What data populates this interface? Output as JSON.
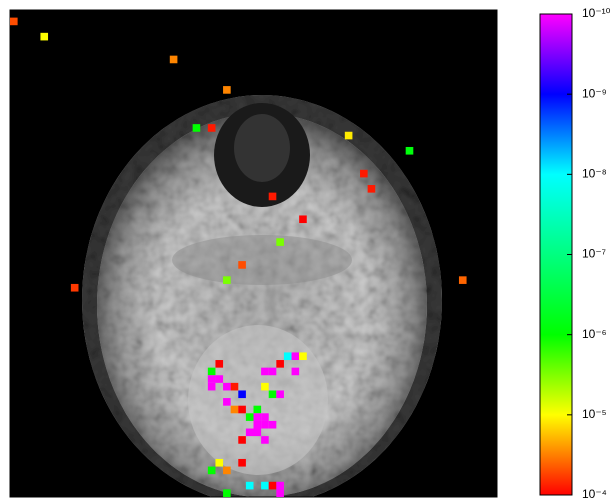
{
  "chart_data": {
    "type": "image-overlay",
    "grid_size": 64,
    "colorbar": {
      "scale": "log",
      "lim": [
        1e-10,
        0.0001
      ],
      "ticks": [
        {
          "value": 1e-10,
          "label": "10⁻¹⁰"
        },
        {
          "value": 1e-09,
          "label": "10⁻⁹"
        },
        {
          "value": 1e-08,
          "label": "10⁻⁸"
        },
        {
          "value": 1e-07,
          "label": "10⁻⁷"
        },
        {
          "value": 1e-06,
          "label": "10⁻⁶"
        },
        {
          "value": 1e-05,
          "label": "10⁻⁵"
        },
        {
          "value": 0.0001,
          "label": "10⁻⁴"
        }
      ],
      "colormap": [
        "#ff0000",
        "#ffff00",
        "#00ff00",
        "#00ff80",
        "#00ffff",
        "#0000ff",
        "#ff00ff"
      ]
    },
    "voxels": [
      {
        "x": 0,
        "y": 1,
        "value": 5e-05
      },
      {
        "x": 4,
        "y": 3,
        "value": 1e-05
      },
      {
        "x": 21,
        "y": 6,
        "value": 3e-05
      },
      {
        "x": 28,
        "y": 10,
        "value": 3e-05
      },
      {
        "x": 24,
        "y": 15,
        "value": 1e-06
      },
      {
        "x": 26,
        "y": 15,
        "value": 8e-05
      },
      {
        "x": 44,
        "y": 16,
        "value": 1.2e-05
      },
      {
        "x": 52,
        "y": 18,
        "value": 8e-07
      },
      {
        "x": 46,
        "y": 21,
        "value": 8e-05
      },
      {
        "x": 47,
        "y": 23,
        "value": 8e-05
      },
      {
        "x": 34,
        "y": 24,
        "value": 8e-05
      },
      {
        "x": 38,
        "y": 27,
        "value": 0.0001
      },
      {
        "x": 35,
        "y": 30,
        "value": 3e-06
      },
      {
        "x": 30,
        "y": 33,
        "value": 5e-05
      },
      {
        "x": 28,
        "y": 35,
        "value": 3e-06
      },
      {
        "x": 59,
        "y": 35,
        "value": 4e-05
      },
      {
        "x": 8,
        "y": 36,
        "value": 6e-05
      },
      {
        "x": 27,
        "y": 46,
        "value": 0.0001
      },
      {
        "x": 35,
        "y": 46,
        "value": 0.0001
      },
      {
        "x": 26,
        "y": 47,
        "value": 1e-06
      },
      {
        "x": 36,
        "y": 45,
        "value": 1e-08
      },
      {
        "x": 37,
        "y": 45,
        "value": 1e-10
      },
      {
        "x": 38,
        "y": 45,
        "value": 1e-05
      },
      {
        "x": 26,
        "y": 48,
        "value": 1e-10
      },
      {
        "x": 27,
        "y": 48,
        "value": 1e-10
      },
      {
        "x": 26,
        "y": 49,
        "value": 1e-10
      },
      {
        "x": 28,
        "y": 49,
        "value": 1e-10
      },
      {
        "x": 29,
        "y": 49,
        "value": 8e-05
      },
      {
        "x": 30,
        "y": 50,
        "value": 1e-09
      },
      {
        "x": 33,
        "y": 47,
        "value": 1e-10
      },
      {
        "x": 34,
        "y": 47,
        "value": 1e-10
      },
      {
        "x": 37,
        "y": 47,
        "value": 1e-10
      },
      {
        "x": 33,
        "y": 49,
        "value": 1e-05
      },
      {
        "x": 34,
        "y": 50,
        "value": 1e-06
      },
      {
        "x": 35,
        "y": 50,
        "value": 1e-10
      },
      {
        "x": 28,
        "y": 51,
        "value": 1e-10
      },
      {
        "x": 29,
        "y": 52,
        "value": 3e-05
      },
      {
        "x": 30,
        "y": 52,
        "value": 0.0001
      },
      {
        "x": 32,
        "y": 52,
        "value": 1e-06
      },
      {
        "x": 32,
        "y": 53,
        "value": 1e-10
      },
      {
        "x": 33,
        "y": 53,
        "value": 1e-10
      },
      {
        "x": 31,
        "y": 53,
        "value": 1e-06
      },
      {
        "x": 32,
        "y": 54,
        "value": 1e-10
      },
      {
        "x": 33,
        "y": 54,
        "value": 1e-10
      },
      {
        "x": 34,
        "y": 54,
        "value": 1e-10
      },
      {
        "x": 31,
        "y": 55,
        "value": 1e-10
      },
      {
        "x": 32,
        "y": 55,
        "value": 1e-10
      },
      {
        "x": 33,
        "y": 56,
        "value": 1e-10
      },
      {
        "x": 30,
        "y": 56,
        "value": 0.0001
      },
      {
        "x": 27,
        "y": 59,
        "value": 1e-05
      },
      {
        "x": 28,
        "y": 60,
        "value": 3e-05
      },
      {
        "x": 26,
        "y": 60,
        "value": 1e-06
      },
      {
        "x": 30,
        "y": 59,
        "value": 0.0001
      },
      {
        "x": 31,
        "y": 62,
        "value": 1e-08
      },
      {
        "x": 33,
        "y": 62,
        "value": 1e-08
      },
      {
        "x": 34,
        "y": 62,
        "value": 0.0001
      },
      {
        "x": 35,
        "y": 62,
        "value": 1e-10
      },
      {
        "x": 35,
        "y": 63,
        "value": 1e-10
      },
      {
        "x": 28,
        "y": 63,
        "value": 1e-06
      }
    ]
  }
}
